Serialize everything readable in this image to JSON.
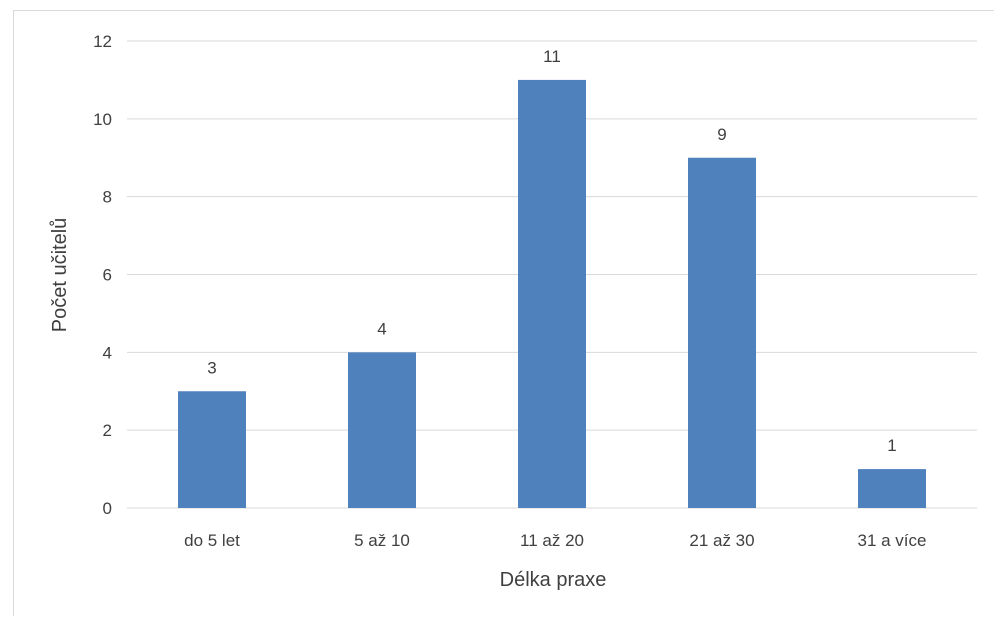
{
  "chart_data": {
    "type": "bar",
    "title": "",
    "xlabel": "Délka praxe",
    "ylabel": "Počet učitelů",
    "categories": [
      "do 5 let",
      "5 až 10",
      "11 až 20",
      "21 až 30",
      "31 a více"
    ],
    "values": [
      3,
      4,
      11,
      9,
      1
    ],
    "ylim": [
      0,
      12
    ],
    "yticks": [
      0,
      2,
      4,
      6,
      8,
      10,
      12
    ],
    "grid": true,
    "legend": "none",
    "data_labels": true,
    "colors": {
      "bar": "#4f81bd",
      "grid": "#d9d9d9",
      "text": "#404040"
    }
  }
}
